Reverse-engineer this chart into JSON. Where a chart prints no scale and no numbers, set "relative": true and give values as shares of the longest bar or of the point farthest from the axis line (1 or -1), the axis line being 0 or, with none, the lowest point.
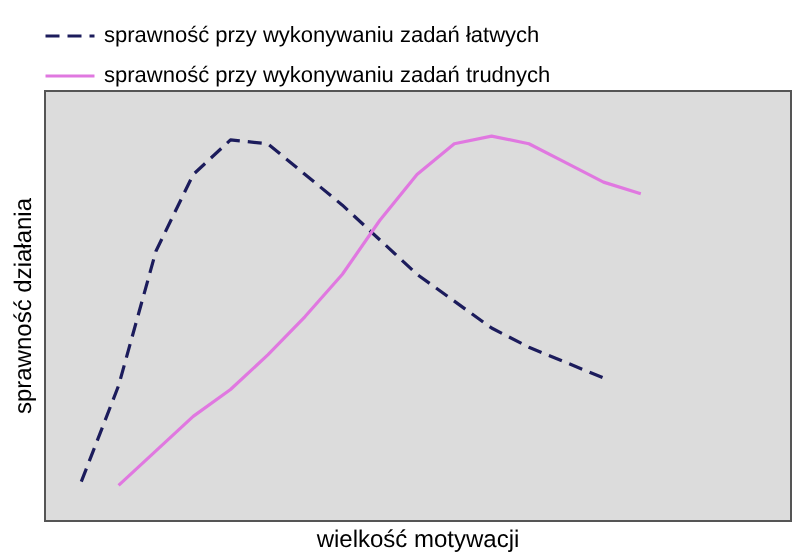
{
  "chart_data": {
    "type": "line",
    "relative": true,
    "xlabel": "wielkość motywacji",
    "ylabel": "sprawność działania",
    "tick_labels": false,
    "grid": false,
    "legend": "top",
    "marker": "none",
    "categories": [
      null,
      null,
      null,
      null,
      null,
      null,
      null,
      null,
      null,
      null,
      null,
      null,
      null,
      null,
      null,
      null,
      null,
      null,
      null
    ],
    "series": [
      {
        "name": "sprawność przy wykonywaniu zadań łatwych",
        "color": "#1c1c5c",
        "line_style": "dashed",
        "values": [
          0.1,
          0.35,
          0.7,
          0.9,
          0.99,
          0.98,
          0.9,
          0.82,
          0.73,
          0.64,
          0.57,
          0.5,
          0.45,
          0.41,
          0.37,
          null,
          null,
          null,
          null
        ]
      },
      {
        "name": "sprawność przy wykonywaniu zadań trudnych",
        "color": "#e078e0",
        "line_style": "solid",
        "values": [
          null,
          0.09,
          0.18,
          0.27,
          0.34,
          0.43,
          0.53,
          0.64,
          0.78,
          0.9,
          0.98,
          1.0,
          0.98,
          0.93,
          0.88,
          0.85,
          null,
          null,
          null
        ]
      }
    ]
  }
}
